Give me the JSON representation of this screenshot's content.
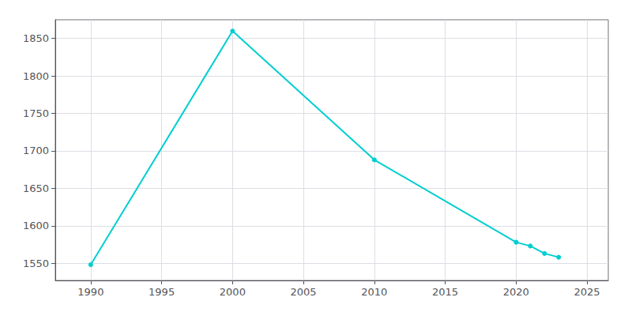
{
  "chart_data": {
    "type": "line",
    "x": [
      1990,
      2000,
      2010,
      2020,
      2021,
      2022,
      2023
    ],
    "values": [
      1548,
      1860,
      1688,
      1578,
      1573,
      1563,
      1558
    ],
    "color": "#00CED1",
    "marker": "circle",
    "xlim": [
      1987.5,
      2026.5
    ],
    "ylim": [
      1527,
      1875
    ],
    "xticks": [
      1990,
      1995,
      2000,
      2005,
      2010,
      2015,
      2020,
      2025
    ],
    "yticks": [
      1550,
      1600,
      1650,
      1700,
      1750,
      1800,
      1850
    ],
    "grid": true
  }
}
